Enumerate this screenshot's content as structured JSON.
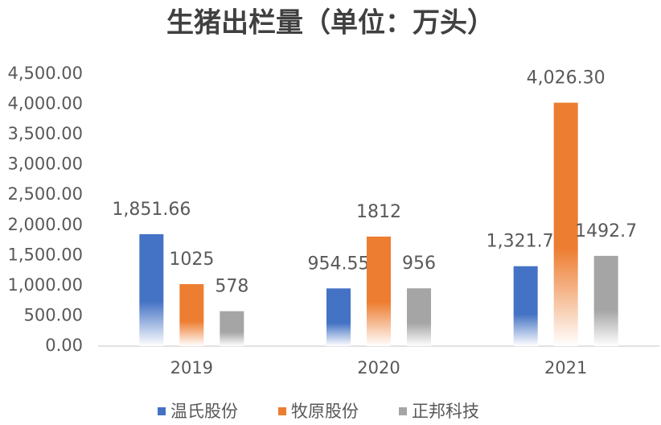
{
  "chart_data": {
    "type": "bar",
    "title": "生猪出栏量（单位：万头）",
    "categories": [
      "2019",
      "2020",
      "2021"
    ],
    "series": [
      {
        "name": "温氏股份",
        "color": "#4472c4",
        "values": [
          1851.66,
          954.55,
          1321.74
        ],
        "value_labels": [
          "1,851.66",
          "954.55",
          "1,321.74"
        ]
      },
      {
        "name": "牧原股份",
        "color": "#ed7d31",
        "values": [
          1025,
          1812,
          4026.3
        ],
        "value_labels": [
          "1025",
          "1812",
          "4,026.30"
        ]
      },
      {
        "name": "正邦科技",
        "color": "#a5a5a5",
        "values": [
          578,
          956,
          1492.7
        ]
      }
    ],
    "ylim": [
      0,
      4500
    ],
    "yticks": [
      {
        "value": 0,
        "label": "0.00"
      },
      {
        "value": 500,
        "label": "500.00"
      },
      {
        "value": 1000,
        "label": "1,000.00"
      },
      {
        "value": 1500,
        "label": "1,500.00"
      },
      {
        "value": 2000,
        "label": "2,000.00"
      },
      {
        "value": 2500,
        "label": "2,500.00"
      },
      {
        "value": 3000,
        "label": "3,000.00"
      },
      {
        "value": 3500,
        "label": "3,500.00"
      },
      {
        "value": 4000,
        "label": "4,000.00"
      },
      {
        "value": 4500,
        "label": "4,500.00"
      }
    ],
    "grid": false,
    "legend": "bottom"
  }
}
